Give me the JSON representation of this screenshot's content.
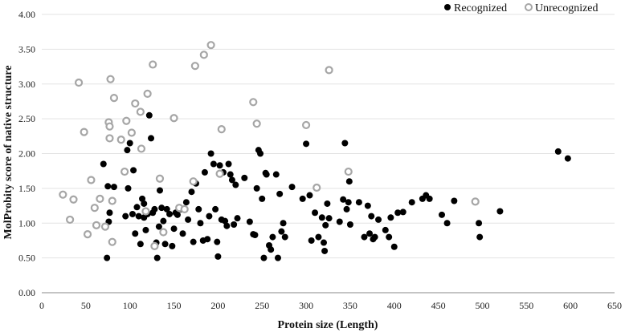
{
  "chart_data": {
    "type": "scatter",
    "xlabel": "Protein size (Length)",
    "ylabel": "MolProbity score of native structure",
    "xlim": [
      0,
      650
    ],
    "ylim": [
      0,
      4
    ],
    "xticks": [
      "0",
      "50",
      "100",
      "150",
      "200",
      "250",
      "300",
      "350",
      "400",
      "450",
      "500",
      "550",
      "600",
      "650"
    ],
    "yticks": [
      "0.00",
      "0.50",
      "1.00",
      "1.50",
      "2.00",
      "2.50",
      "3.00",
      "3.50",
      "4.00"
    ],
    "grid": "horizontal",
    "legend_position": "top-right",
    "colors": {
      "recognized": "#000000",
      "unrecognized_fill": "#ffffff",
      "unrecognized_stroke": "#a6a6a6"
    },
    "series": [
      {
        "name": "Recognized",
        "marker": "filled-circle",
        "points": [
          [
            70,
            1.85
          ],
          [
            75,
            1.53
          ],
          [
            82,
            1.52
          ],
          [
            77,
            1.15
          ],
          [
            76,
            1.02
          ],
          [
            74,
            0.5
          ],
          [
            95,
            1.1
          ],
          [
            97,
            2.05
          ],
          [
            100,
            2.15
          ],
          [
            98,
            1.5
          ],
          [
            103,
            1.13
          ],
          [
            104,
            1.76
          ],
          [
            106,
            0.85
          ],
          [
            108,
            1.23
          ],
          [
            110,
            1.1
          ],
          [
            112,
            0.7
          ],
          [
            114,
            1.35
          ],
          [
            116,
            1.28
          ],
          [
            116,
            1.08
          ],
          [
            118,
            0.9
          ],
          [
            120,
            1.13
          ],
          [
            122,
            2.55
          ],
          [
            124,
            2.22
          ],
          [
            126,
            1.15
          ],
          [
            128,
            1.2
          ],
          [
            130,
            0.72
          ],
          [
            131,
            0.5
          ],
          [
            133,
            0.95
          ],
          [
            134,
            1.47
          ],
          [
            136,
            1.22
          ],
          [
            138,
            1.03
          ],
          [
            140,
            0.7
          ],
          [
            142,
            1.2
          ],
          [
            145,
            1.13
          ],
          [
            148,
            0.67
          ],
          [
            150,
            0.92
          ],
          [
            152,
            1.15
          ],
          [
            154,
            1.12
          ],
          [
            158,
            1.2
          ],
          [
            160,
            0.85
          ],
          [
            164,
            1.3
          ],
          [
            166,
            1.05
          ],
          [
            170,
            1.45
          ],
          [
            172,
            0.73
          ],
          [
            175,
            1.57
          ],
          [
            178,
            1.2
          ],
          [
            180,
            1.0
          ],
          [
            183,
            0.75
          ],
          [
            185,
            1.73
          ],
          [
            188,
            0.77
          ],
          [
            190,
            1.1
          ],
          [
            192,
            2.0
          ],
          [
            195,
            1.85
          ],
          [
            197,
            1.2
          ],
          [
            199,
            0.73
          ],
          [
            200,
            0.52
          ],
          [
            202,
            1.83
          ],
          [
            204,
            1.05
          ],
          [
            206,
            1.73
          ],
          [
            208,
            1.03
          ],
          [
            210,
            0.96
          ],
          [
            212,
            1.85
          ],
          [
            214,
            1.7
          ],
          [
            216,
            1.62
          ],
          [
            218,
            0.98
          ],
          [
            220,
            1.55
          ],
          [
            222,
            1.07
          ],
          [
            230,
            1.65
          ],
          [
            236,
            1.02
          ],
          [
            240,
            0.84
          ],
          [
            242,
            0.83
          ],
          [
            244,
            1.5
          ],
          [
            246,
            2.05
          ],
          [
            248,
            2.0
          ],
          [
            250,
            1.35
          ],
          [
            252,
            0.5
          ],
          [
            254,
            1.72
          ],
          [
            255,
            1.7
          ],
          [
            258,
            0.68
          ],
          [
            260,
            0.62
          ],
          [
            262,
            0.8
          ],
          [
            266,
            1.7
          ],
          [
            268,
            0.5
          ],
          [
            270,
            1.42
          ],
          [
            272,
            0.88
          ],
          [
            274,
            1.0
          ],
          [
            276,
            0.8
          ],
          [
            284,
            1.52
          ],
          [
            296,
            1.35
          ],
          [
            300,
            2.14
          ],
          [
            304,
            1.4
          ],
          [
            306,
            0.75
          ],
          [
            310,
            1.15
          ],
          [
            314,
            0.8
          ],
          [
            318,
            1.08
          ],
          [
            320,
            0.72
          ],
          [
            321,
            0.6
          ],
          [
            322,
            0.97
          ],
          [
            324,
            1.28
          ],
          [
            326,
            1.07
          ],
          [
            338,
            1.02
          ],
          [
            342,
            1.34
          ],
          [
            344,
            2.15
          ],
          [
            346,
            1.2
          ],
          [
            348,
            1.3
          ],
          [
            349,
            1.6
          ],
          [
            350,
            0.98
          ],
          [
            360,
            1.3
          ],
          [
            366,
            0.8
          ],
          [
            370,
            1.25
          ],
          [
            372,
            0.85
          ],
          [
            374,
            1.1
          ],
          [
            376,
            0.77
          ],
          [
            378,
            0.8
          ],
          [
            382,
            1.05
          ],
          [
            390,
            0.9
          ],
          [
            394,
            0.8
          ],
          [
            396,
            1.08
          ],
          [
            400,
            0.66
          ],
          [
            404,
            1.15
          ],
          [
            410,
            1.16
          ],
          [
            420,
            1.3
          ],
          [
            432,
            1.35
          ],
          [
            436,
            1.4
          ],
          [
            440,
            1.35
          ],
          [
            454,
            1.12
          ],
          [
            460,
            1.0
          ],
          [
            468,
            1.32
          ],
          [
            496,
            1.0
          ],
          [
            497,
            0.8
          ],
          [
            520,
            1.17
          ],
          [
            586,
            2.03
          ],
          [
            597,
            1.93
          ]
        ]
      },
      {
        "name": "Unrecognized",
        "marker": "hollow-circle",
        "points": [
          [
            24,
            1.41
          ],
          [
            32,
            1.05
          ],
          [
            36,
            1.34
          ],
          [
            42,
            3.02
          ],
          [
            48,
            2.31
          ],
          [
            52,
            0.84
          ],
          [
            56,
            1.62
          ],
          [
            60,
            1.22
          ],
          [
            62,
            0.97
          ],
          [
            66,
            1.35
          ],
          [
            72,
            0.95
          ],
          [
            76,
            2.45
          ],
          [
            77,
            2.22
          ],
          [
            77,
            2.39
          ],
          [
            78,
            3.07
          ],
          [
            80,
            1.32
          ],
          [
            80,
            0.73
          ],
          [
            82,
            2.8
          ],
          [
            90,
            2.2
          ],
          [
            94,
            1.74
          ],
          [
            96,
            2.47
          ],
          [
            102,
            2.3
          ],
          [
            106,
            2.72
          ],
          [
            112,
            2.6
          ],
          [
            113,
            2.07
          ],
          [
            118,
            1.17
          ],
          [
            120,
            2.86
          ],
          [
            126,
            3.28
          ],
          [
            128,
            0.67
          ],
          [
            134,
            1.64
          ],
          [
            138,
            0.87
          ],
          [
            150,
            2.51
          ],
          [
            156,
            1.22
          ],
          [
            162,
            1.2
          ],
          [
            172,
            1.6
          ],
          [
            174,
            3.26
          ],
          [
            184,
            3.42
          ],
          [
            192,
            3.56
          ],
          [
            202,
            1.71
          ],
          [
            204,
            2.35
          ],
          [
            240,
            2.74
          ],
          [
            244,
            2.43
          ],
          [
            300,
            2.41
          ],
          [
            312,
            1.51
          ],
          [
            326,
            3.2
          ],
          [
            348,
            1.74
          ],
          [
            492,
            1.31
          ]
        ]
      }
    ]
  }
}
